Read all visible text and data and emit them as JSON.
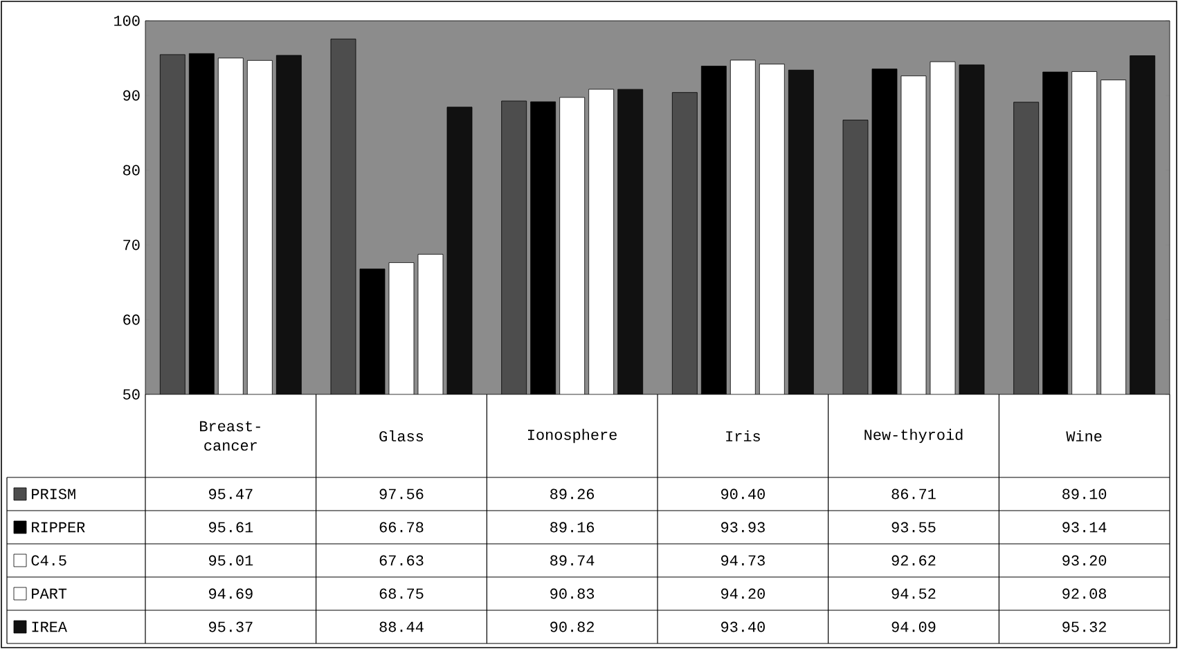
{
  "chart_data": {
    "type": "bar",
    "categories": [
      "Breast-cancer",
      "Glass",
      "Ionosphere",
      "Iris",
      "New-thyroid",
      "Wine"
    ],
    "ylim": [
      50,
      100
    ],
    "yticks": [
      50,
      60,
      70,
      80,
      90,
      100
    ],
    "legend": "bottom",
    "series": [
      {
        "name": "PRISM",
        "color": "#4d4d4d",
        "values": [
          95.47,
          97.56,
          89.26,
          90.4,
          86.71,
          89.1
        ],
        "value_labels": [
          "95.47",
          "97.56",
          "89.26",
          "90.40",
          "86.71",
          "89.10"
        ]
      },
      {
        "name": "RIPPER",
        "color": "#000000",
        "values": [
          95.61,
          66.78,
          89.16,
          93.93,
          93.55,
          93.14
        ],
        "value_labels": [
          "95.61",
          "66.78",
          "89.16",
          "93.93",
          "93.55",
          "93.14"
        ]
      },
      {
        "name": "C4.5",
        "color": "#ffffff",
        "values": [
          95.01,
          67.63,
          89.74,
          94.73,
          92.62,
          93.2
        ],
        "value_labels": [
          "95.01",
          "67.63",
          "89.74",
          "94.73",
          "92.62",
          "93.20"
        ]
      },
      {
        "name": "PART",
        "color": "#ffffff",
        "values": [
          94.69,
          68.75,
          90.83,
          94.2,
          94.52,
          92.08
        ],
        "value_labels": [
          "94.69",
          "68.75",
          "90.83",
          "94.20",
          "94.52",
          "92.08"
        ]
      },
      {
        "name": "IREA",
        "color": "#111111",
        "values": [
          95.37,
          88.44,
          90.82,
          93.4,
          94.09,
          95.32
        ],
        "value_labels": [
          "95.37",
          "88.44",
          "90.82",
          "93.40",
          "94.09",
          "95.32"
        ]
      }
    ]
  }
}
